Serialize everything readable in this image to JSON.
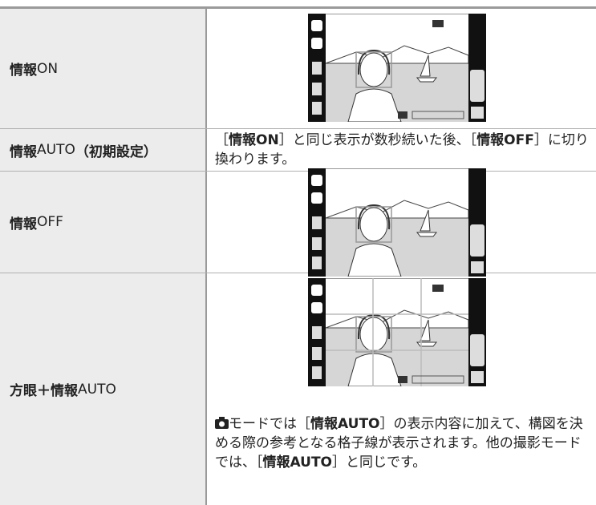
{
  "rows": [
    {
      "label": [
        {
          "text": "情報",
          "bold": true
        },
        {
          "text": "ON",
          "bold": false
        }
      ]
    },
    {
      "label": [
        {
          "text": "情報",
          "bold": true
        },
        {
          "text": "AUTO",
          "bold": false
        },
        {
          "text": "（初期設定）",
          "bold": true
        }
      ],
      "description": [
        {
          "text": "［",
          "bold": false
        },
        {
          "text": "情報ON",
          "bold": true
        },
        {
          "text": "］と同じ表示が数秒続いた後、［",
          "bold": false
        },
        {
          "text": "情報OFF",
          "bold": true
        },
        {
          "text": "］に切り換わります。",
          "bold": false
        }
      ]
    },
    {
      "label": [
        {
          "text": "情報",
          "bold": true
        },
        {
          "text": "OFF",
          "bold": false
        }
      ]
    },
    {
      "label": [
        {
          "text": "方眼＋情報",
          "bold": true
        },
        {
          "text": "AUTO",
          "bold": false
        }
      ],
      "description": [
        {
          "text": "モードでは［",
          "bold": false
        },
        {
          "text": "情報AUTO",
          "bold": true
        },
        {
          "text": "］の表示内容に加えて、構図を決める際の参考となる格子線が表示されます。他の撮影モードでは、［",
          "bold": false
        },
        {
          "text": "情報AUTO",
          "bold": true
        },
        {
          "text": "］と同じです。",
          "bold": false
        }
      ]
    }
  ]
}
